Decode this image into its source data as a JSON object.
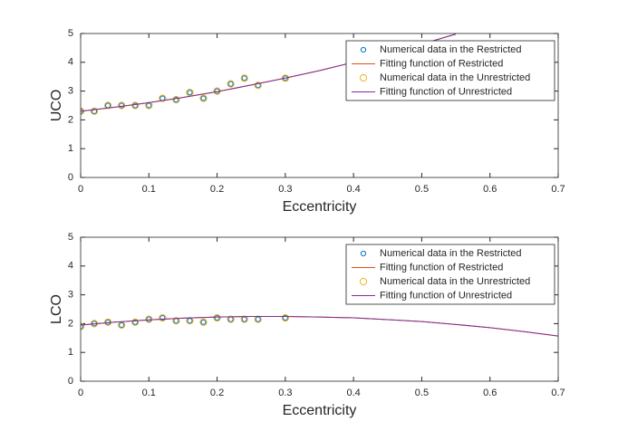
{
  "chart_data": [
    {
      "type": "scatter",
      "xlabel": "Eccentricity",
      "ylabel": "UCO",
      "xlim": [
        0,
        0.7
      ],
      "xticks": [
        0,
        0.1,
        0.2,
        0.3,
        0.4,
        0.5,
        0.6,
        0.7
      ],
      "ylim": [
        0,
        5
      ],
      "yticks": [
        0,
        1,
        2,
        3,
        4,
        5
      ],
      "legend": "northeast",
      "series": [
        {
          "name": "Numerical data in the Restricted",
          "type": "scatter",
          "color": "#0072bd",
          "x": [
            0,
            0.02,
            0.04,
            0.06,
            0.08,
            0.1,
            0.12,
            0.14,
            0.16,
            0.18,
            0.2,
            0.22,
            0.24,
            0.26,
            0.3
          ],
          "values": [
            2.3,
            2.3,
            2.5,
            2.5,
            2.5,
            2.5,
            2.75,
            2.7,
            2.95,
            2.75,
            3.0,
            3.25,
            3.45,
            3.2,
            3.45
          ]
        },
        {
          "name": "Fitting function of Restricted",
          "type": "line",
          "color": "#d95319",
          "x": [
            0,
            0.05,
            0.1,
            0.15,
            0.2,
            0.25,
            0.3,
            0.35,
            0.4,
            0.45,
            0.5,
            0.55
          ],
          "values": [
            2.3,
            2.44,
            2.6,
            2.78,
            2.98,
            3.21,
            3.45,
            3.71,
            4.0,
            4.31,
            4.63,
            4.98
          ]
        },
        {
          "name": "Numerical data in the Unrestricted",
          "type": "scatter",
          "color": "#edb120",
          "x": [
            0,
            0.02,
            0.04,
            0.06,
            0.08,
            0.1,
            0.12,
            0.14,
            0.16,
            0.18,
            0.2,
            0.22,
            0.24,
            0.26,
            0.3
          ],
          "values": [
            2.3,
            2.3,
            2.5,
            2.5,
            2.5,
            2.5,
            2.75,
            2.7,
            2.95,
            2.75,
            3.0,
            3.25,
            3.45,
            3.2,
            3.45
          ]
        },
        {
          "name": "Fitting function of Unrestricted",
          "type": "line",
          "color": "#7e2f8e",
          "x": [
            0,
            0.05,
            0.1,
            0.15,
            0.2,
            0.25,
            0.3,
            0.35,
            0.4,
            0.45,
            0.5,
            0.55
          ],
          "values": [
            2.3,
            2.44,
            2.6,
            2.78,
            2.98,
            3.21,
            3.45,
            3.71,
            4.0,
            4.31,
            4.63,
            4.98
          ]
        }
      ]
    },
    {
      "type": "scatter",
      "xlabel": "Eccentricity",
      "ylabel": "LCO",
      "xlim": [
        0,
        0.7
      ],
      "xticks": [
        0,
        0.1,
        0.2,
        0.3,
        0.4,
        0.5,
        0.6,
        0.7
      ],
      "ylim": [
        0,
        5
      ],
      "yticks": [
        0,
        1,
        2,
        3,
        4,
        5
      ],
      "legend": "northeast",
      "series": [
        {
          "name": "Numerical data in the Restricted",
          "type": "scatter",
          "color": "#0072bd",
          "x": [
            0,
            0.02,
            0.04,
            0.06,
            0.08,
            0.1,
            0.12,
            0.14,
            0.16,
            0.18,
            0.2,
            0.22,
            0.24,
            0.26,
            0.3
          ],
          "values": [
            1.9,
            2.0,
            2.05,
            1.95,
            2.05,
            2.15,
            2.2,
            2.1,
            2.1,
            2.05,
            2.2,
            2.15,
            2.15,
            2.15,
            2.2
          ]
        },
        {
          "name": "Fitting function of Restricted",
          "type": "line",
          "color": "#d95319",
          "x": [
            0,
            0.05,
            0.1,
            0.15,
            0.2,
            0.25,
            0.3,
            0.35,
            0.4,
            0.45,
            0.5,
            0.55,
            0.6,
            0.65,
            0.7
          ],
          "values": [
            1.95,
            2.05,
            2.13,
            2.19,
            2.23,
            2.25,
            2.25,
            2.23,
            2.2,
            2.14,
            2.07,
            1.97,
            1.86,
            1.72,
            1.57
          ]
        },
        {
          "name": "Numerical data in the Unrestricted",
          "type": "scatter",
          "color": "#edb120",
          "x": [
            0,
            0.02,
            0.04,
            0.06,
            0.08,
            0.1,
            0.12,
            0.14,
            0.16,
            0.18,
            0.2,
            0.22,
            0.24,
            0.26,
            0.3
          ],
          "values": [
            1.9,
            2.0,
            2.05,
            1.95,
            2.05,
            2.15,
            2.2,
            2.1,
            2.1,
            2.05,
            2.2,
            2.15,
            2.15,
            2.15,
            2.2
          ]
        },
        {
          "name": "Fitting function of Unrestricted",
          "type": "line",
          "color": "#7e2f8e",
          "x": [
            0,
            0.05,
            0.1,
            0.15,
            0.2,
            0.25,
            0.3,
            0.35,
            0.4,
            0.45,
            0.5,
            0.55,
            0.6,
            0.65,
            0.7
          ],
          "values": [
            1.95,
            2.05,
            2.13,
            2.19,
            2.23,
            2.25,
            2.25,
            2.23,
            2.2,
            2.14,
            2.07,
            1.97,
            1.86,
            1.72,
            1.57
          ]
        }
      ]
    }
  ]
}
